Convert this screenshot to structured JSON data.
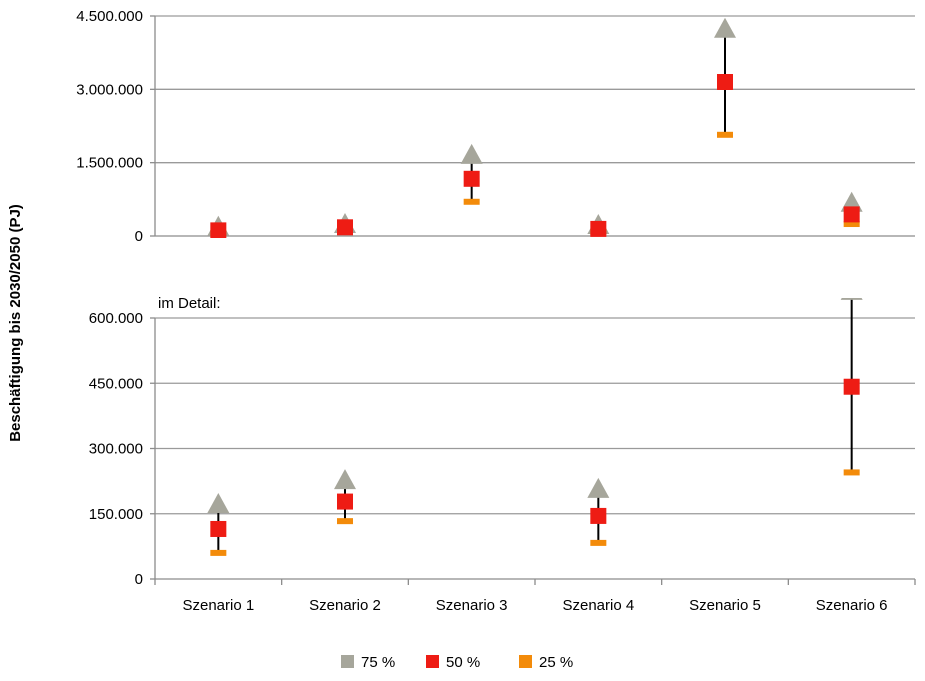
{
  "chart_data": {
    "type": "scatter",
    "ylabel": "Beschäftigung bis 2030/2050 (PJ)",
    "categories": [
      "Szenario 1",
      "Szenario 2",
      "Szenario 3",
      "Szenario 4",
      "Szenario 5",
      "Szenario 6"
    ],
    "legend": [
      {
        "label": "75 %",
        "color": "#a6a69b",
        "marker": "triangle"
      },
      {
        "label": "50 %",
        "color": "#ee1c14",
        "marker": "square"
      },
      {
        "label": "25 %",
        "color": "#f38b0a",
        "marker": "dash"
      }
    ],
    "legend_placement": "bottom",
    "series": [
      {
        "name": "75 %",
        "values": [
          170000,
          225000,
          1640000,
          205000,
          4220000,
          660000
        ]
      },
      {
        "name": "50 %",
        "values": [
          115000,
          178000,
          1170000,
          145000,
          3150000,
          442000
        ]
      },
      {
        "name": "25 %",
        "values": [
          60000,
          133000,
          700000,
          83000,
          2070000,
          245000
        ]
      }
    ],
    "panels": [
      {
        "name": "overview",
        "note": "",
        "ylim": [
          0,
          4500000
        ],
        "yticks": [
          0,
          1500000,
          3000000,
          4500000
        ],
        "ytick_labels": [
          "0",
          "1.500.000",
          "3.000.000",
          "4.500.000"
        ],
        "gridlines": true
      },
      {
        "name": "detail",
        "note": "im Detail:",
        "ylim": [
          0,
          600000
        ],
        "yticks": [
          0,
          150000,
          300000,
          450000,
          600000
        ],
        "ytick_labels": [
          "0",
          "150.000",
          "300.000",
          "450.000",
          "600.000"
        ],
        "gridlines": true
      }
    ]
  }
}
